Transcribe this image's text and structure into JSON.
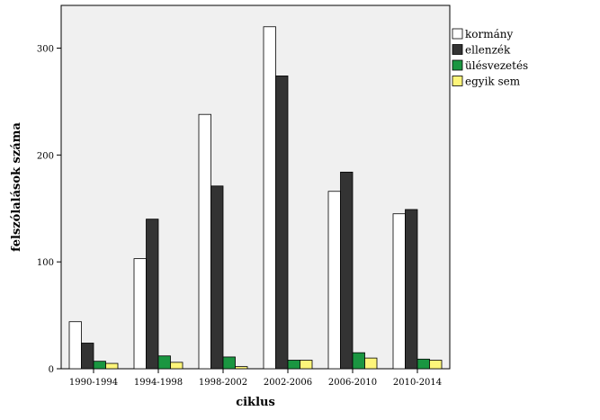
{
  "chart_data": {
    "type": "bar",
    "xlabel": "ciklus",
    "ylabel": "felszólalások száma",
    "ylim": [
      0,
      340
    ],
    "yticks": [
      0,
      100,
      200,
      300
    ],
    "grid": false,
    "legend_position": "right",
    "categories": [
      "1990-1994",
      "1994-1998",
      "1998-2002",
      "2002-2006",
      "2006-2010",
      "2010-2014"
    ],
    "series": [
      {
        "name": "kormány",
        "color": "#ffffff",
        "values": [
          44,
          103,
          238,
          320,
          166,
          145
        ]
      },
      {
        "name": "ellenzék",
        "color": "#333333",
        "values": [
          24,
          140,
          171,
          274,
          184,
          149
        ]
      },
      {
        "name": "ülésvezetés",
        "color": "#1a9641",
        "values": [
          7,
          12,
          11,
          8,
          15,
          9
        ]
      },
      {
        "name": "egyik sem",
        "color": "#fdf57a",
        "values": [
          5,
          6,
          2,
          8,
          10,
          8
        ]
      }
    ]
  }
}
